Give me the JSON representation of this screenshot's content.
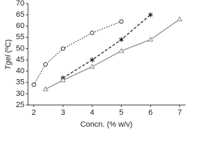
{
  "chart_data": {
    "type": "line",
    "xlabel": "Concn. (% w/v)",
    "ylabel": "Tgel",
    "ylabel_unit": "(ºC)",
    "xlim": [
      1.8,
      7.2
    ],
    "xticks": [
      2,
      3,
      4,
      5,
      6,
      7
    ],
    "ylim": [
      25,
      70
    ],
    "yticks": [
      25,
      30,
      35,
      40,
      45,
      50,
      55,
      60,
      65,
      70
    ],
    "series": [
      {
        "color": "#333333",
        "marker": "circle",
        "dash": "dotted",
        "x": [
          2,
          2.4,
          3,
          4,
          5
        ],
        "values": [
          34,
          43,
          50,
          57,
          62
        ]
      },
      {
        "color": "#111111",
        "marker": "asterisk",
        "dash": "dashed",
        "x": [
          3,
          4,
          5,
          6
        ],
        "values": [
          37,
          45,
          54,
          65
        ]
      },
      {
        "color": "#888888",
        "marker": "triangle",
        "dash": "solid",
        "x": [
          2.4,
          3,
          4,
          5,
          6,
          7
        ],
        "values": [
          32,
          36,
          42,
          49,
          54,
          63
        ]
      }
    ]
  }
}
